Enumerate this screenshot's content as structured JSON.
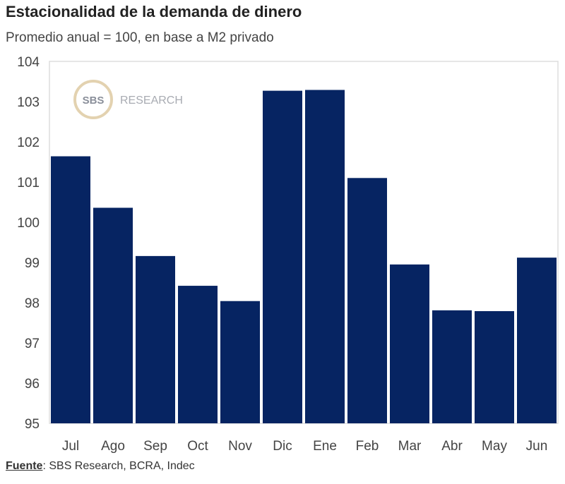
{
  "chart_data": {
    "type": "bar",
    "title": "Estacionalidad de la demanda de dinero",
    "subtitle": "Promedio anual = 100, en base a M2 privado",
    "categories": [
      "Jul",
      "Ago",
      "Sep",
      "Oct",
      "Nov",
      "Dic",
      "Ene",
      "Feb",
      "Mar",
      "Abr",
      "May",
      "Jun"
    ],
    "values": [
      101.64,
      100.36,
      99.16,
      98.42,
      98.04,
      103.27,
      103.29,
      101.1,
      98.95,
      97.81,
      97.79,
      99.12
    ],
    "xlabel": "",
    "ylabel": "",
    "ylim": [
      95,
      104
    ],
    "yticks": [
      95,
      96,
      97,
      98,
      99,
      100,
      101,
      102,
      103,
      104
    ],
    "grid": false,
    "bar_color": "#062462"
  },
  "watermark": {
    "logo_text": "SBS",
    "text": "RESEARCH"
  },
  "source": {
    "label": "Fuente",
    "text": ": SBS Research, BCRA, Indec"
  }
}
